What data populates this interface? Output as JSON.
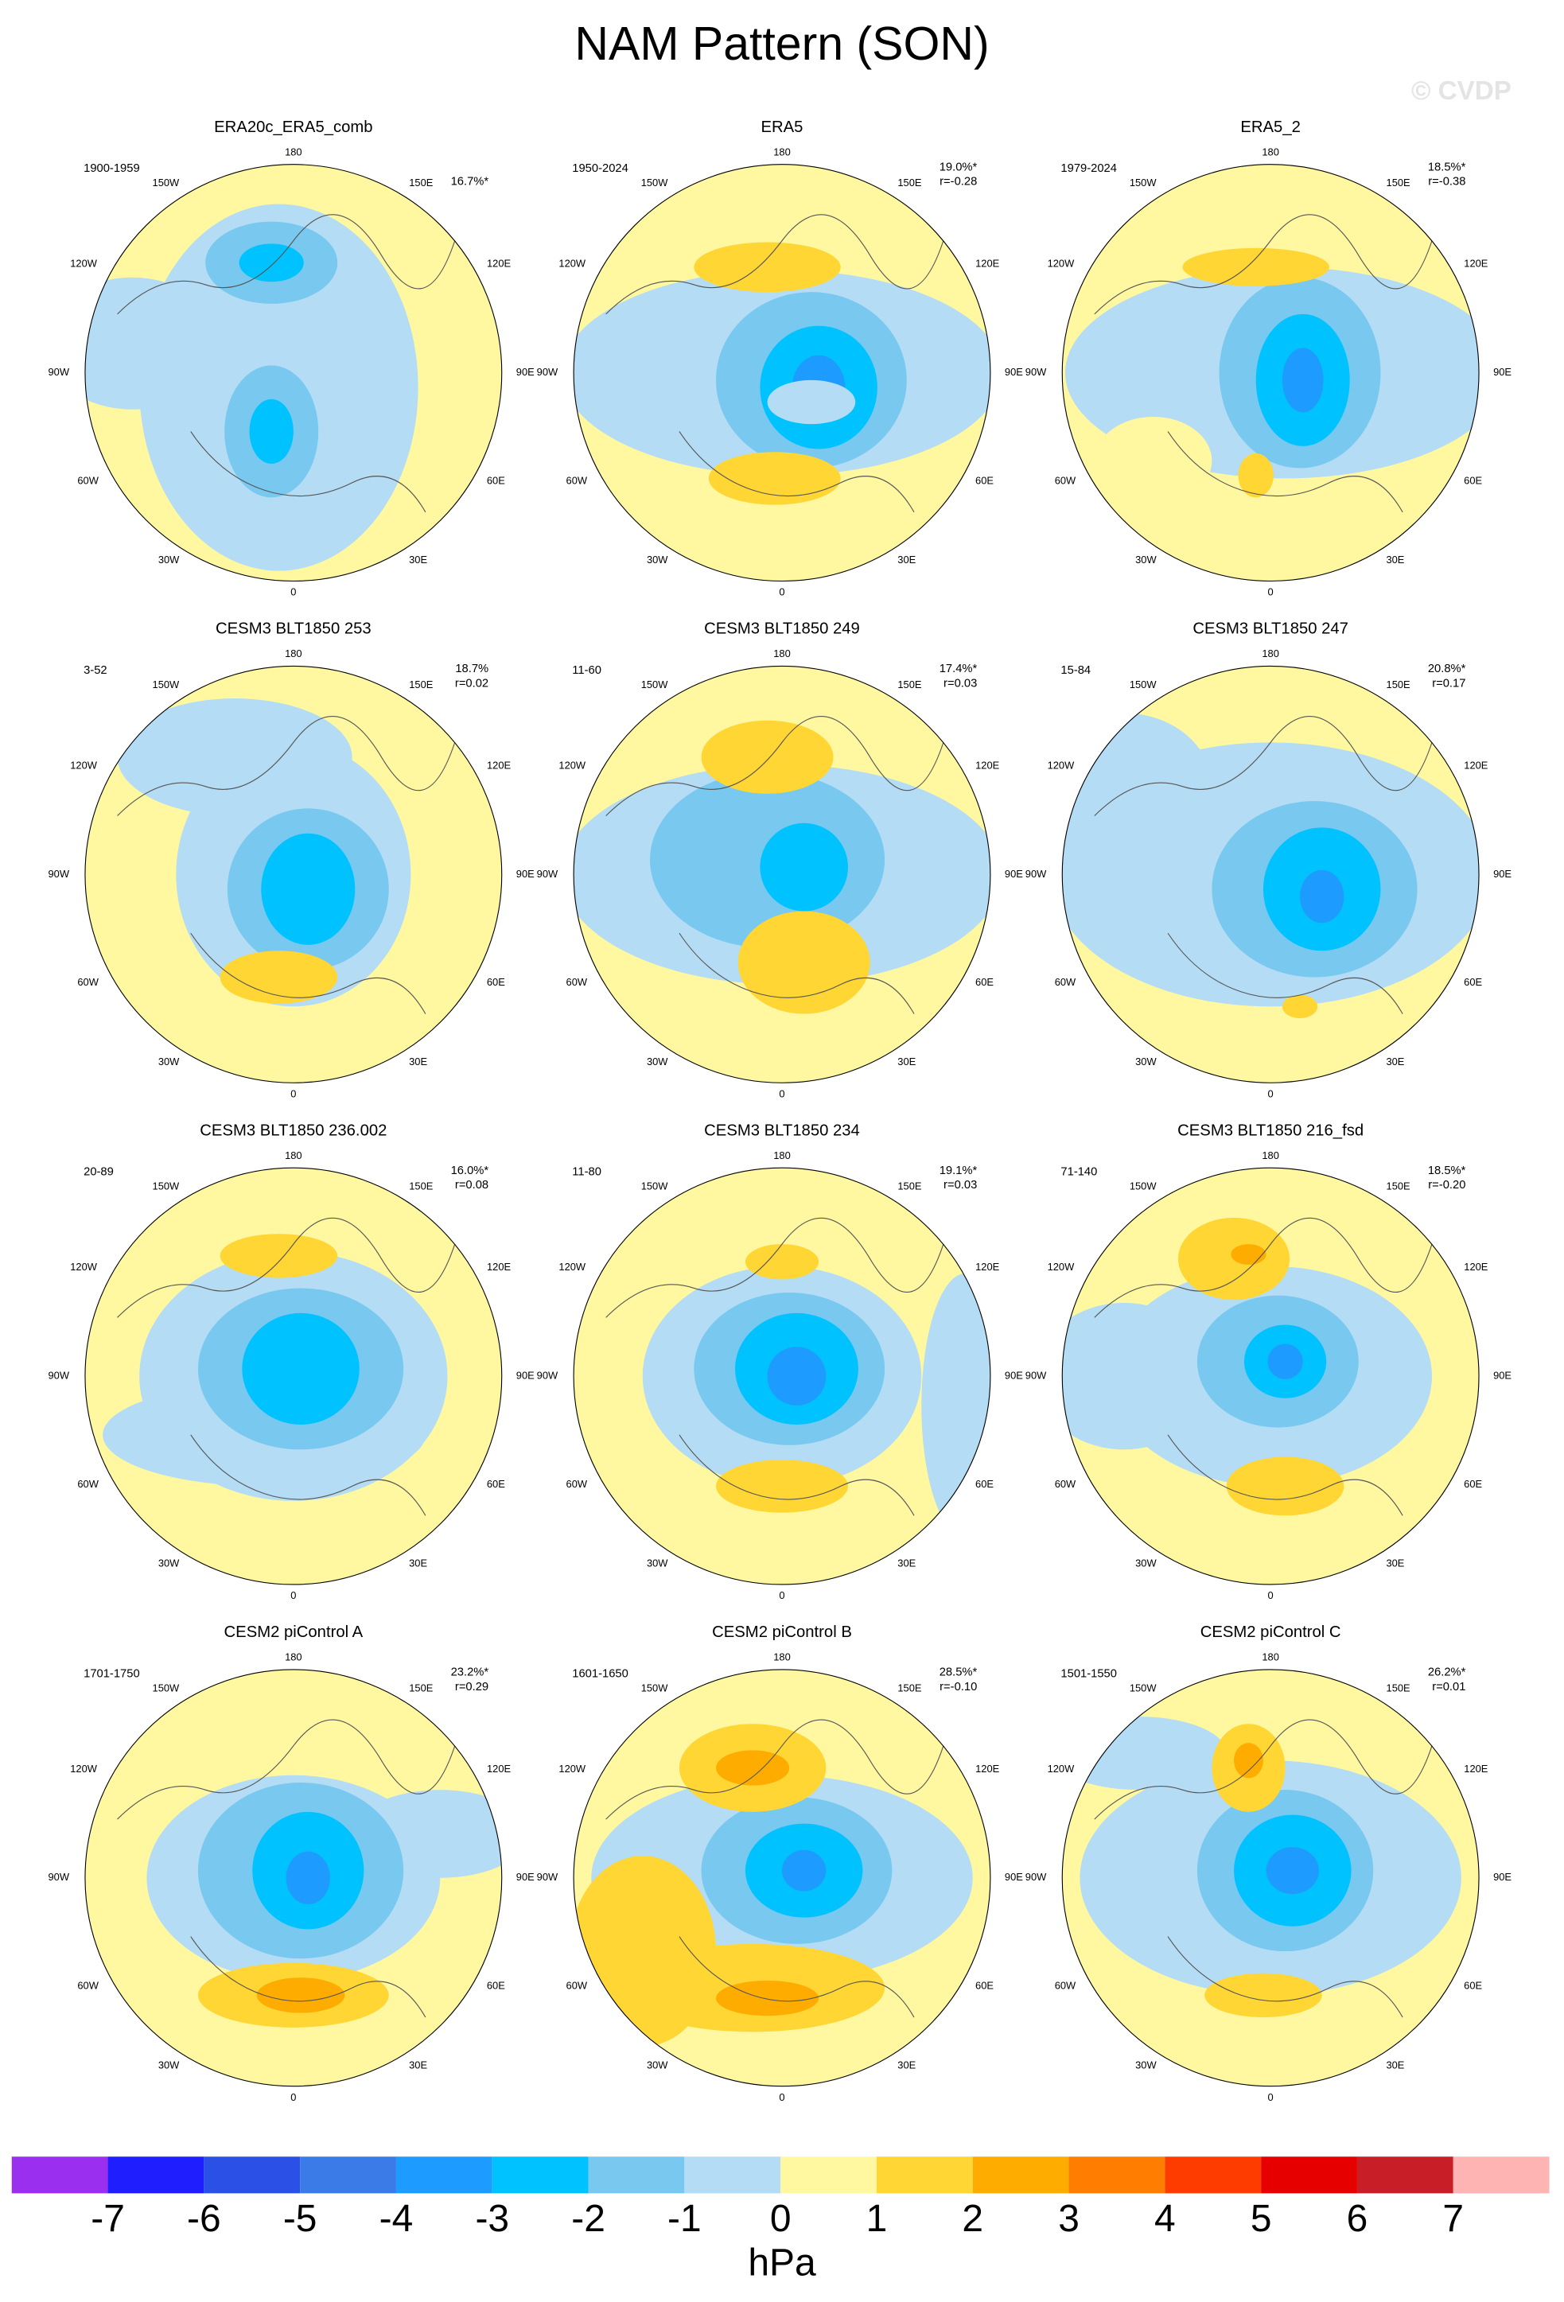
{
  "title": "NAM Pattern (SON)",
  "watermark": "© CVDP",
  "lon_labels": [
    "180",
    "150W",
    "150E",
    "120W",
    "120E",
    "90W",
    "90E",
    "60W",
    "60E",
    "30W",
    "30E",
    "0"
  ],
  "panels": [
    {
      "title": "ERA20c_ERA5_comb",
      "period": "1900-1959",
      "pct": "16.7%*"
    },
    {
      "title": "ERA5",
      "period": "1950-2024",
      "pct": "19.0%*",
      "r": "r=-0.28"
    },
    {
      "title": "ERA5_2",
      "period": "1979-2024",
      "pct": "18.5%*",
      "r": "r=-0.38"
    },
    {
      "title": "CESM3 BLT1850 253",
      "period": "3-52",
      "pct": "18.7%",
      "r": "r=0.02"
    },
    {
      "title": "CESM3 BLT1850 249",
      "period": "11-60",
      "pct": "17.4%*",
      "r": "r=0.03"
    },
    {
      "title": "CESM3 BLT1850 247",
      "period": "15-84",
      "pct": "20.8%*",
      "r": "r=0.17"
    },
    {
      "title": "CESM3 BLT1850 236.002",
      "period": "20-89",
      "pct": "16.0%*",
      "r": "r=0.08"
    },
    {
      "title": "CESM3 BLT1850 234",
      "period": "11-80",
      "pct": "19.1%*",
      "r": "r=0.03"
    },
    {
      "title": "CESM3 BLT1850 216_fsd",
      "period": "71-140",
      "pct": "18.5%*",
      "r": "r=-0.20"
    },
    {
      "title": "CESM2 piControl A",
      "period": "1701-1750",
      "pct": "23.2%*",
      "r": "r=0.29"
    },
    {
      "title": "CESM2 piControl B",
      "period": "1601-1650",
      "pct": "28.5%*",
      "r": "r=-0.10"
    },
    {
      "title": "CESM2 piControl C",
      "period": "1501-1550",
      "pct": "26.2%*",
      "r": "r=0.01"
    }
  ],
  "colorbar": {
    "levels": [
      -7,
      -6,
      -5,
      -4,
      -3,
      -2,
      -1,
      0,
      1,
      2,
      3,
      4,
      5,
      6,
      7
    ],
    "colors": [
      "#9a2ff0",
      "#1e1eff",
      "#2b50e6",
      "#3a7be8",
      "#1e9bff",
      "#00c2ff",
      "#78c8f0",
      "#b4dcf5",
      "#fff8a0",
      "#ffd633",
      "#ffac00",
      "#ff7d00",
      "#ff3c00",
      "#e60000",
      "#c81e28",
      "#ffb4b4"
    ],
    "label": "hPa"
  }
}
